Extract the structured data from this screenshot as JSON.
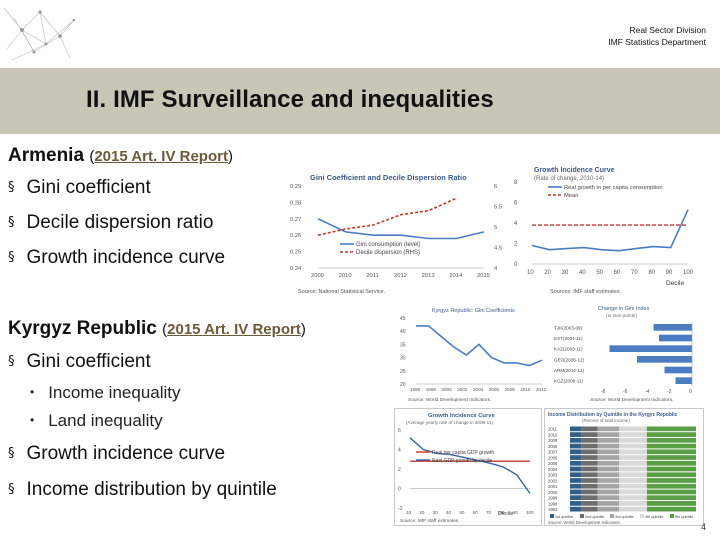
{
  "header": {
    "division": "Real Sector Division",
    "department": "IMF Statistics Department"
  },
  "title": "II. IMF Surveillance and inequalities",
  "armenia": {
    "country": "Armenia",
    "report_prefix": "(",
    "report_link": "2015 Art. IV Report",
    "report_suffix": ")",
    "bullets": [
      "Gini coefficient",
      "Decile dispersion ratio",
      "Growth incidence curve"
    ]
  },
  "kyrgyz": {
    "country": "Kyrgyz Republic",
    "report_prefix": "(",
    "report_link": "2015 Art. IV Report",
    "report_suffix": ")",
    "bullet_1": "Gini coefficient",
    "sub_items": [
      "Income inequality",
      "Land inequality"
    ],
    "bullets_after": [
      "Growth incidence curve",
      "Income distribution by quintile"
    ]
  },
  "bullet_marker": "§",
  "sub_marker": "•",
  "page_number": "4",
  "accent_color": "#c8c6b7",
  "chart_data": [
    {
      "type": "line",
      "title": "Gini Coefficient and Decile Dispersion Ratio",
      "x": [
        2009,
        2010,
        2011,
        2012,
        2013,
        2014,
        2015
      ],
      "left_ticks": [
        "0.29",
        "0.28",
        "0.27",
        "0.26",
        "0.25",
        "0.24"
      ],
      "right_ticks": [
        "6",
        "5.5",
        "5",
        "4.5",
        "4"
      ],
      "series": [
        {
          "name": "Gini consumption (level)",
          "values": [
            0.27,
            0.262,
            0.26,
            0.26,
            0.258,
            0.258,
            0.262
          ],
          "color": "#4b7cc2"
        },
        {
          "name": "Decile dispersion (RHS)",
          "values": [
            4.8,
            4.95,
            5.05,
            5.3,
            5.4,
            5.7,
            null
          ],
          "color": "#c0392b"
        }
      ],
      "source": "Source: National Statistical Service."
    },
    {
      "type": "line",
      "title": "Growth Incidence Curve",
      "subtitle": "(Rate of change, 2010-14)",
      "x": [
        10,
        20,
        30,
        40,
        50,
        60,
        70,
        80,
        90,
        100
      ],
      "xlabel": "Decile",
      "y_ticks": [
        "8",
        "6",
        "4",
        "2",
        "0"
      ],
      "series": [
        {
          "name": "Real growth in per capita consumption",
          "values": [
            1.8,
            1.4,
            1.5,
            1.6,
            1.4,
            1.3,
            1.5,
            1.7,
            1.6,
            5.3
          ],
          "color": "#4b7cc2"
        },
        {
          "name": "Mean",
          "values": [
            3.8,
            3.8,
            3.8,
            3.8,
            3.8,
            3.8,
            3.8,
            3.8,
            3.8,
            3.8
          ],
          "color": "#c0392b"
        }
      ],
      "source": "Sources: IMF staff estimates."
    },
    {
      "type": "line",
      "title": "Kyrgyz Republic: Gini Coefficients",
      "x_ticks": [
        "1996",
        "1998",
        "2000",
        "2002",
        "2004",
        "2006",
        "2008",
        "2010",
        "2012"
      ],
      "y_ticks": [
        "45",
        "40",
        "35",
        "30",
        "25",
        "20"
      ],
      "series": [
        {
          "name": "Gini",
          "values": [
            42,
            42,
            38,
            34,
            31,
            35,
            30,
            28,
            28,
            27,
            29
          ]
        }
      ],
      "source": "Source: World Development Indicators."
    },
    {
      "type": "bar",
      "title": "Change in Gini Index",
      "subtitle": "(in Gini points)",
      "categories": [
        "TJK(2003-09)",
        "EST(2004-11)",
        "KAZ(2003-11)",
        "GEO(2005-12)",
        "ARM(2010-14)",
        "KGZ(2008-11)"
      ],
      "values": [
        -3.5,
        -3.0,
        -7.5,
        -5.0,
        -2.5,
        -1.5
      ],
      "x_ticks": [
        "-8",
        "-6",
        "-4",
        "-2",
        "0"
      ],
      "source": "Source: World Development Indicators."
    },
    {
      "type": "line",
      "title": "Growth Incidence Curve",
      "subtitle": "(Average yearly rate of change in 2008-11)",
      "x": [
        10,
        20,
        30,
        40,
        50,
        60,
        70,
        80,
        90,
        100
      ],
      "xlabel": "Decile",
      "y_ticks": [
        "6",
        "4",
        "2",
        "0",
        "-2"
      ],
      "series": [
        {
          "name": "Real per capita GDP growth",
          "values": [
            2.8,
            2.8,
            2.8,
            2.8,
            2.8,
            2.8,
            2.8,
            2.8,
            2.8,
            2.8
          ],
          "color": "#c0392b"
        },
        {
          "name": "Real GDP growth by decile",
          "values": [
            5.2,
            4.0,
            3.6,
            3.5,
            3.2,
            2.9,
            2.6,
            2.2,
            1.4,
            -0.5
          ],
          "color": "#3b5fa8"
        }
      ],
      "source": "Source: IMF staff estimates."
    },
    {
      "type": "bar",
      "title": "Income Distribution by Quintile in the Kyrgyz Republic",
      "subtitle": "(Percent of total income)",
      "categories": [
        "2011",
        "2010",
        "2009",
        "2008",
        "2007",
        "2006",
        "2005",
        "2004",
        "2003",
        "2002",
        "2001",
        "2000",
        "1999",
        "1998",
        "1993"
      ],
      "series": [
        {
          "name": "1st quintile",
          "color": "#2f5f8a"
        },
        {
          "name": "2nd quintile",
          "color": "#6e6e6e"
        },
        {
          "name": "3rd quintile",
          "color": "#a5a5a5"
        },
        {
          "name": "4th quintile",
          "color": "#d9d9d9"
        },
        {
          "name": "5th quintile",
          "color": "#5a9e45"
        }
      ],
      "source": "Source: World Development Indicators."
    }
  ]
}
